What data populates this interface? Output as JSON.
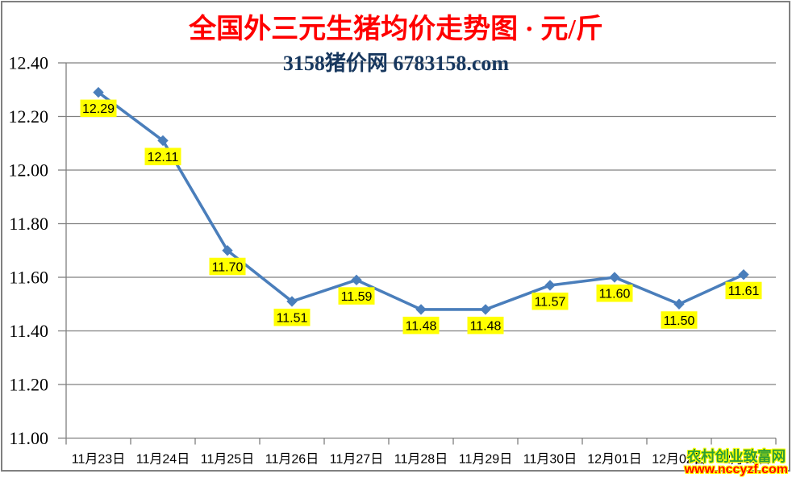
{
  "chart_data": {
    "type": "line",
    "title": "全国外三元生猪均价走势图 · 元/斤",
    "subtitle": "3158猪价网 6783158.com",
    "categories": [
      "11月23日",
      "11月24日",
      "11月25日",
      "11月26日",
      "11月27日",
      "11月28日",
      "11月29日",
      "11月30日",
      "12月01日",
      "12月02日",
      "12月03日"
    ],
    "values": [
      12.29,
      12.11,
      11.7,
      11.51,
      11.59,
      11.48,
      11.48,
      11.57,
      11.6,
      11.5,
      11.61
    ],
    "data_labels": [
      "12.29",
      "12.11",
      "11.70",
      "11.51",
      "11.59",
      "11.48",
      "11.48",
      "11.57",
      "11.60",
      "11.50",
      "11.61"
    ],
    "ylabel": "",
    "xlabel": "",
    "ylim": [
      11.0,
      12.4
    ],
    "ytick_step": 0.2,
    "ytick_labels": [
      "12.40",
      "12.20",
      "12.00",
      "11.80",
      "11.60",
      "11.40",
      "11.20",
      "11.00"
    ],
    "grid": true,
    "legend_position": "none",
    "line_color": "#4a7ebb",
    "marker": "diamond",
    "label_bg_color": "#ffff00",
    "title_color": "#ff0000",
    "subtitle_color": "#17375e"
  },
  "watermark": {
    "name": "农村创业致富网",
    "url": "www.nccyzf.com",
    "name_color": "#2e9e36",
    "url_color": "#ff0000",
    "outline_color": "#ffff00"
  }
}
